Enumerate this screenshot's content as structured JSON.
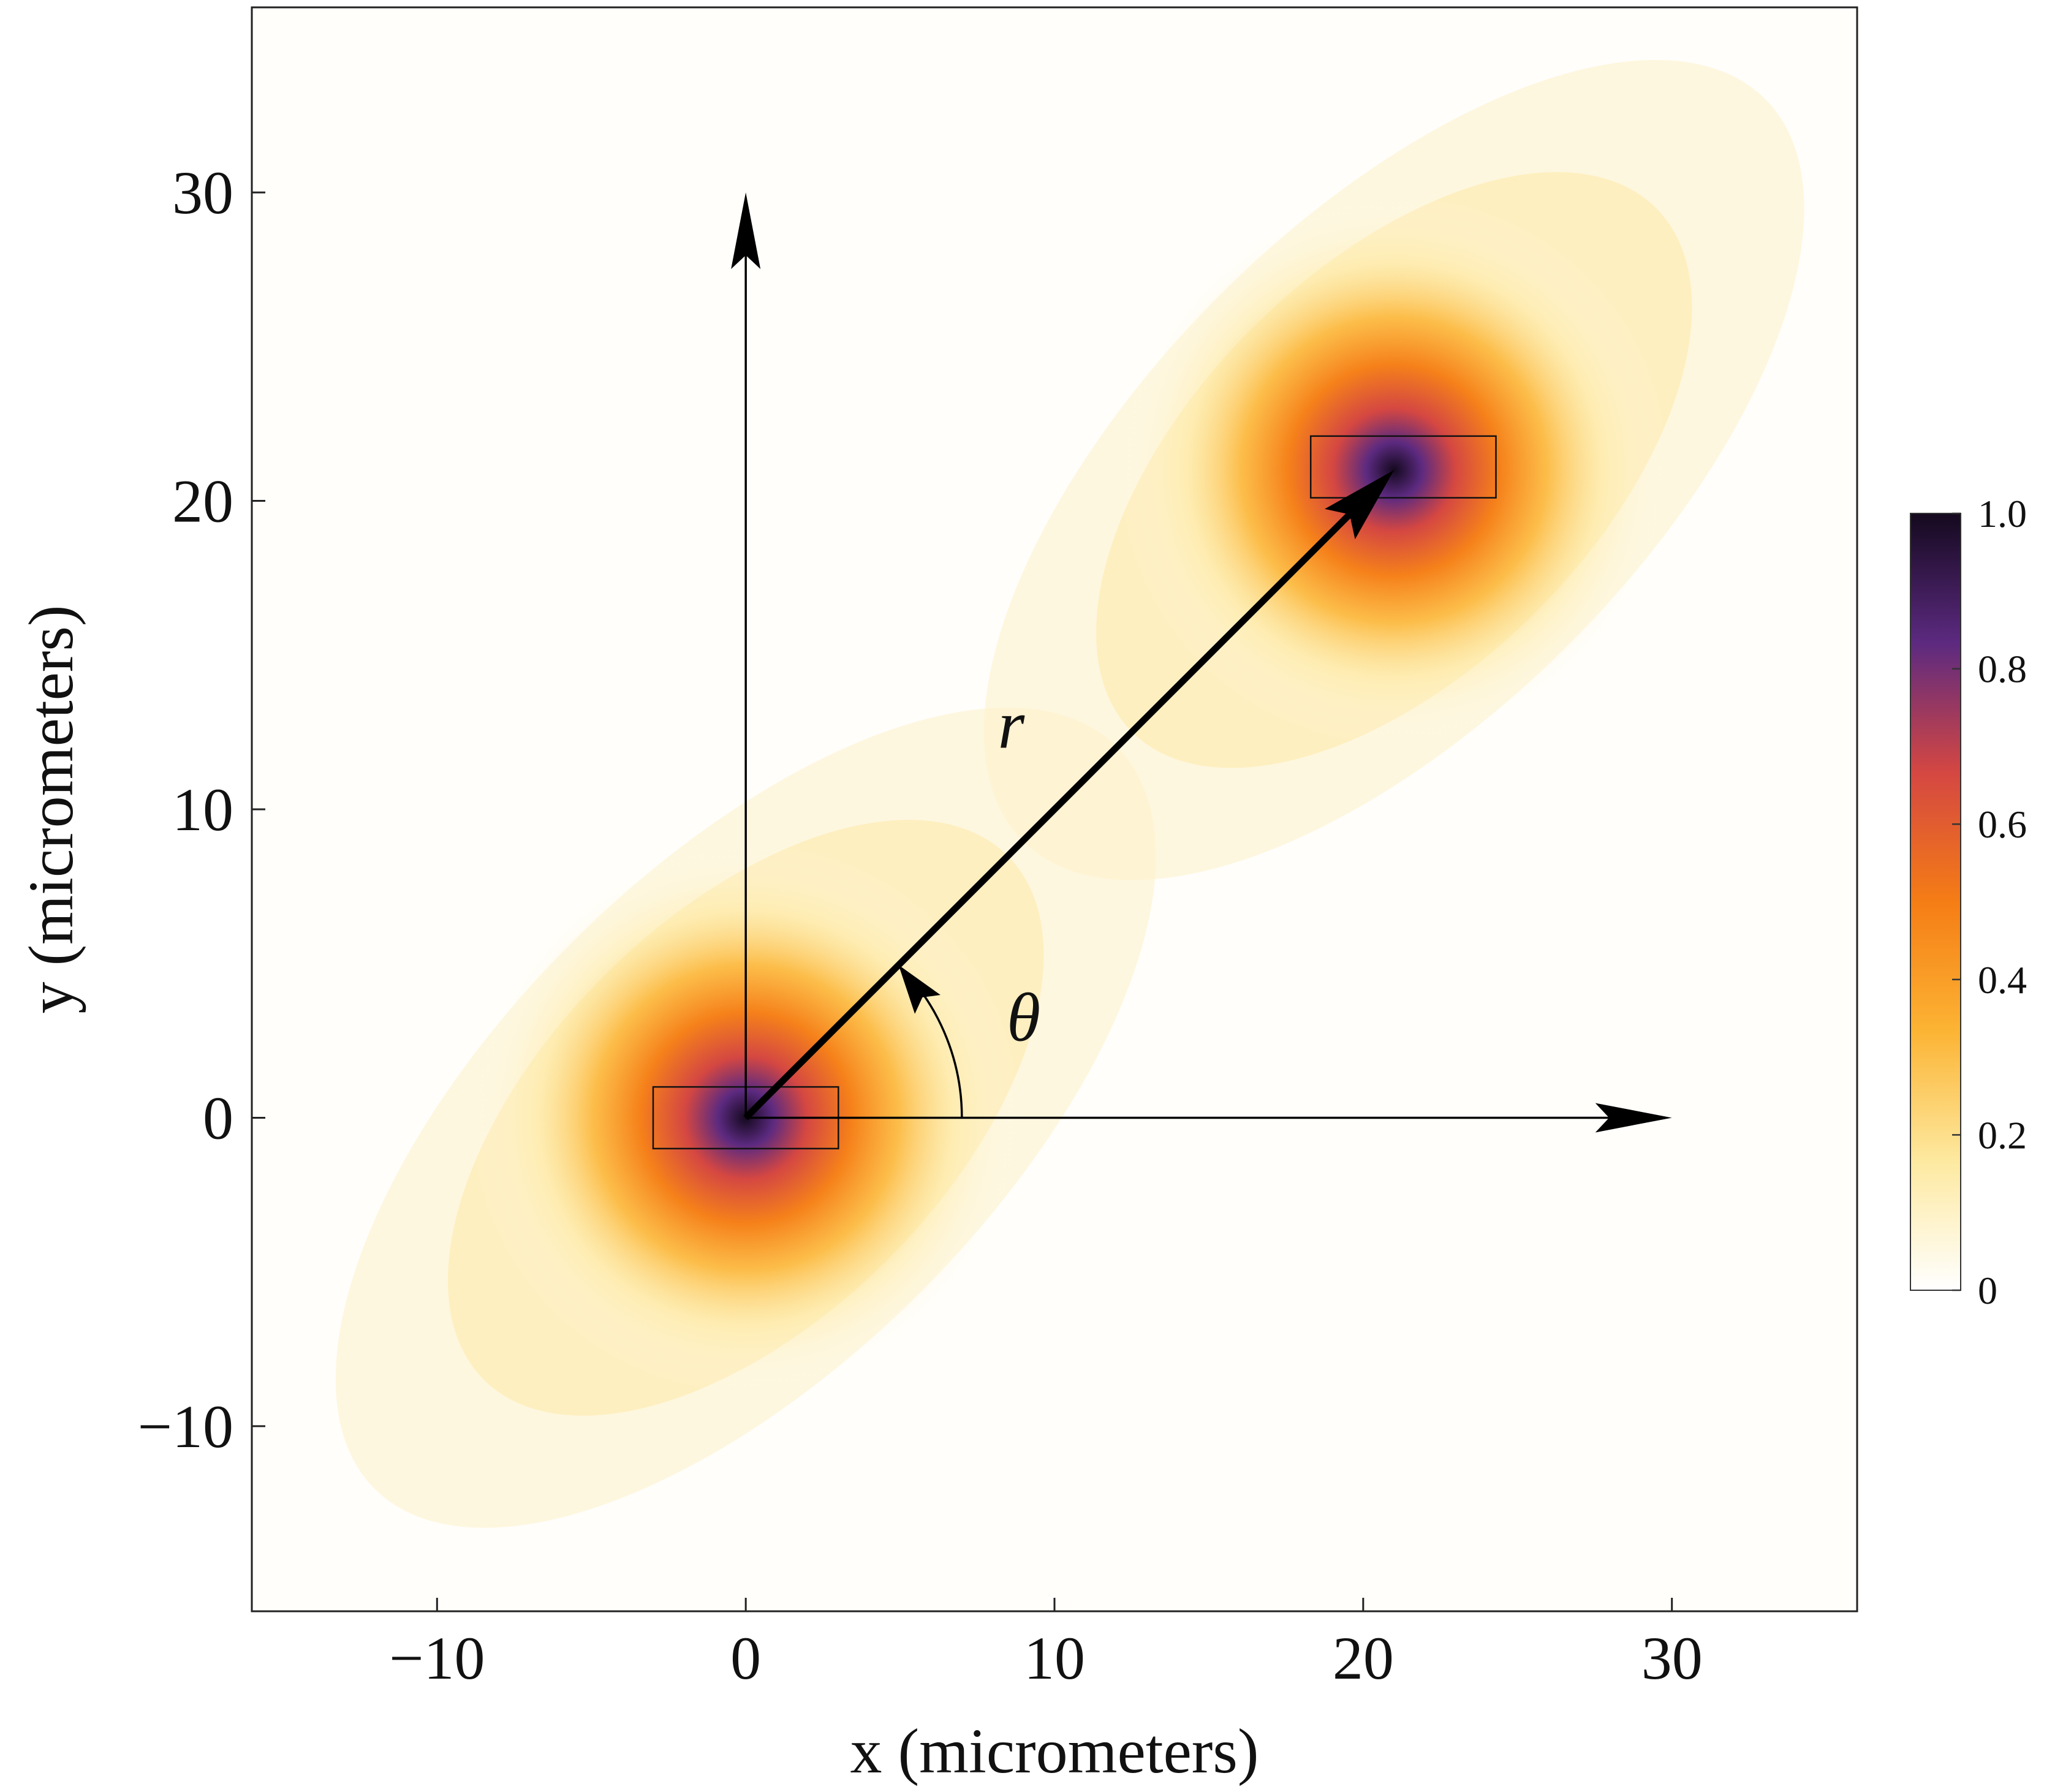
{
  "chart_data": {
    "type": "heatmap",
    "title": "",
    "xlabel": "x (micrometers)",
    "ylabel": "y (micrometers)",
    "xlim": [
      -16,
      36
    ],
    "ylim": [
      -16,
      36
    ],
    "x_ticks": [
      -10,
      0,
      10,
      20,
      30
    ],
    "x_tick_labels": [
      "−10",
      "0",
      "10",
      "20",
      "30"
    ],
    "y_ticks": [
      -10,
      0,
      10,
      20,
      30
    ],
    "y_tick_labels": [
      "−10",
      "0",
      "10",
      "20",
      "30"
    ],
    "grid": false,
    "peaks": [
      {
        "x": 0,
        "y": 0,
        "value": 1.0
      },
      {
        "x": 21,
        "y": 21,
        "value": 1.0
      }
    ],
    "rectangles": [
      {
        "x_range": [
          -3,
          3
        ],
        "y_range": [
          -1,
          1
        ]
      },
      {
        "x_range": [
          18.3,
          24.3
        ],
        "y_range": [
          20.1,
          22.1
        ]
      }
    ],
    "axis_arrows": [
      {
        "from": [
          0,
          0
        ],
        "to": [
          0,
          30
        ]
      },
      {
        "from": [
          0,
          0
        ],
        "to": [
          30,
          0
        ]
      }
    ],
    "r_vector": {
      "from": [
        0,
        0
      ],
      "to": [
        21,
        21
      ]
    },
    "annotations": [
      {
        "text": "r",
        "x": 8.6,
        "y": 12.0
      },
      {
        "text": "θ",
        "x": 9.0,
        "y": 2.5
      }
    ],
    "colorbar": {
      "range": [
        0,
        1
      ],
      "ticks": [
        0,
        0.2,
        0.4,
        0.6,
        0.8,
        1.0
      ],
      "tick_labels": [
        "0",
        "0.2",
        "0.4",
        "0.6",
        "0.8",
        "1.0"
      ],
      "colors": [
        "#ffffff",
        "#fde9a0",
        "#fcb434",
        "#f57d15",
        "#d44742",
        "#5c2a80",
        "#14091e"
      ],
      "placement": "right"
    }
  }
}
